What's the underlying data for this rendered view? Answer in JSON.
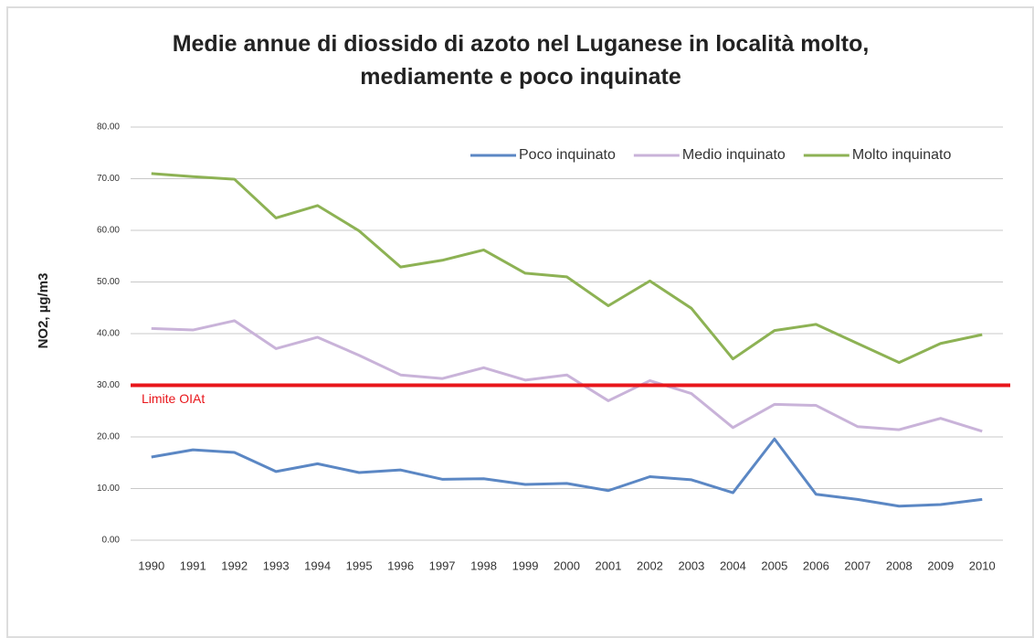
{
  "chart_data": {
    "type": "line",
    "title": "Medie annue di diossido di azoto nel Luganese in località molto, mediamente e poco inquinate",
    "y_label": "NO2, µg/m3",
    "categories": [
      "1990",
      "1991",
      "1992",
      "1993",
      "1994",
      "1995",
      "1996",
      "1997",
      "1998",
      "1999",
      "2000",
      "2001",
      "2002",
      "2003",
      "2004",
      "2005",
      "2006",
      "2007",
      "2008",
      "2009",
      "2010"
    ],
    "series": [
      {
        "name": "Poco inquinato",
        "color": "#5b87c4",
        "values": [
          16.1,
          17.5,
          17.0,
          13.3,
          14.8,
          13.1,
          13.6,
          11.8,
          11.9,
          10.8,
          11.0,
          9.6,
          12.3,
          11.7,
          9.2,
          19.6,
          8.9,
          7.9,
          6.6,
          6.9,
          7.9
        ]
      },
      {
        "name": "Medio inquinato",
        "color": "#c9b3d9",
        "values": [
          41.0,
          40.7,
          42.5,
          37.1,
          39.3,
          35.8,
          32.0,
          31.3,
          33.4,
          31.0,
          32.0,
          27.0,
          30.9,
          28.4,
          21.8,
          26.3,
          26.1,
          22.0,
          21.4,
          23.6,
          21.1
        ]
      },
      {
        "name": "Molto inquinato",
        "color": "#8db254",
        "values": [
          71.0,
          70.4,
          69.9,
          62.4,
          64.8,
          59.9,
          52.9,
          54.2,
          56.2,
          51.7,
          51.0,
          45.4,
          50.2,
          44.9,
          35.1,
          40.6,
          41.8,
          38.1,
          34.4,
          38.1,
          39.8
        ]
      }
    ],
    "threshold": {
      "value": 30,
      "label": "Limite OIAt",
      "color": "#e8161b"
    },
    "ylim": [
      0,
      80
    ],
    "yticks": [
      {
        "value": 0,
        "label": "0.00"
      },
      {
        "value": 10,
        "label": "10.00"
      },
      {
        "value": 20,
        "label": "20.00"
      },
      {
        "value": 30,
        "label": "30.00"
      },
      {
        "value": 40,
        "label": "40.00"
      },
      {
        "value": 50,
        "label": "50.00"
      },
      {
        "value": 60,
        "label": "60.00"
      },
      {
        "value": 70,
        "label": "70.00"
      },
      {
        "value": 80,
        "label": "80.00"
      }
    ],
    "grid": true,
    "legend": "top-right"
  }
}
